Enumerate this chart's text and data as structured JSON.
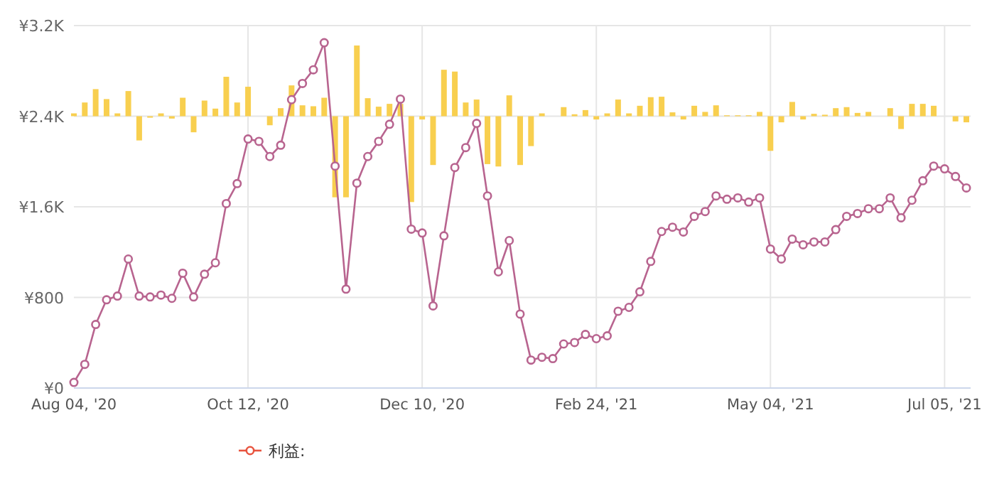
{
  "chart_data": {
    "type": "line",
    "categories": [
      "Aug 04, '20",
      null,
      null,
      null,
      null,
      null,
      null,
      null,
      null,
      null,
      null,
      null,
      null,
      null,
      null,
      null,
      "Oct 12, '20",
      null,
      null,
      null,
      null,
      null,
      null,
      null,
      null,
      null,
      null,
      null,
      null,
      null,
      null,
      null,
      "Dec 10, '20",
      null,
      null,
      null,
      null,
      null,
      null,
      null,
      null,
      null,
      null,
      null,
      null,
      null,
      null,
      null,
      "Feb 24, '21",
      null,
      null,
      null,
      null,
      null,
      null,
      null,
      null,
      null,
      null,
      null,
      null,
      null,
      null,
      null,
      "May 04, '21",
      null,
      null,
      null,
      null,
      null,
      null,
      null,
      null,
      null,
      null,
      null,
      null,
      null,
      null,
      null,
      "Jul 05, '21",
      null,
      null
    ],
    "ylim": [
      0,
      3200
    ],
    "yticks": [
      {
        "value": 0,
        "label": "¥0"
      },
      {
        "value": 800,
        "label": "¥800"
      },
      {
        "value": 1600,
        "label": "¥1.6K"
      },
      {
        "value": 2400,
        "label": "¥2.4K"
      },
      {
        "value": 3200,
        "label": "¥3.2K"
      }
    ],
    "grid": true,
    "legend": "bottom",
    "marker": "circle",
    "series": [
      {
        "type": "bar",
        "color": "#f8cf4f",
        "base": [
          2400,
          2400,
          2400,
          2400,
          2400,
          2400,
          2400,
          2400,
          2400,
          2400,
          2400,
          2400,
          2400,
          2400,
          2400,
          2400,
          2400,
          null,
          2400,
          2400,
          2400,
          2400,
          2400,
          2400,
          2400,
          2400,
          2400,
          2400,
          2400,
          2400,
          2400,
          2400,
          2400,
          2400,
          2400,
          2400,
          2400,
          2400,
          2400,
          2400,
          2400,
          2400,
          2400,
          2400,
          null,
          2400,
          2400,
          2400,
          2400,
          2400,
          2400,
          2400,
          2400,
          2400,
          2400,
          2400,
          2400,
          2400,
          2400,
          2400,
          2400,
          2400,
          2400,
          2400,
          2400,
          2400,
          2400,
          2400,
          2400,
          2400,
          2400,
          2400,
          2400,
          2400,
          null,
          2400,
          2400,
          2400,
          2400,
          2400,
          null,
          2400,
          2400
        ],
        "values": [
          25,
          121,
          239,
          151,
          25,
          222,
          -214,
          -13,
          25,
          -21,
          163,
          -142,
          138,
          67,
          348,
          121,
          260,
          null,
          -80,
          71,
          272,
          96,
          88,
          163,
          -716,
          -716,
          624,
          159,
          84,
          109,
          109,
          -758,
          -29,
          -431,
          410,
          394,
          121,
          147,
          -423,
          -444,
          184,
          -431,
          -264,
          25,
          null,
          80,
          17,
          54,
          -29,
          25,
          147,
          25,
          92,
          168,
          172,
          34,
          -29,
          92,
          38,
          96,
          8,
          8,
          8,
          38,
          -306,
          -54,
          126,
          -29,
          21,
          13,
          71,
          80,
          29,
          38,
          null,
          71,
          -113,
          109,
          109,
          92,
          null,
          -46,
          -54
        ]
      },
      {
        "name": "利益:",
        "color": "#e8543f",
        "values": [
          null,
          null,
          null,
          null,
          null,
          null,
          null,
          null,
          null,
          null,
          null,
          null,
          null,
          null,
          null,
          null,
          null,
          null,
          null,
          null,
          null,
          null,
          null,
          null,
          null,
          null,
          null,
          null,
          null,
          null,
          null,
          null,
          null,
          null,
          null,
          null,
          null,
          null,
          null,
          null,
          null,
          null,
          null,
          null,
          null,
          null,
          null,
          null,
          null,
          null,
          null,
          null,
          null,
          null,
          null,
          null,
          null,
          null,
          null,
          null,
          null,
          null,
          null,
          null,
          null,
          null,
          null,
          null,
          null,
          null,
          null,
          null,
          null,
          null,
          null,
          null,
          null,
          null,
          null,
          null,
          null,
          null,
          null
        ]
      },
      {
        "color": "#b8648f",
        "values": [
          50,
          209,
          561,
          779,
          812,
          1139,
          812,
          804,
          821,
          792,
          1014,
          804,
          1005,
          1106,
          1629,
          1805,
          2199,
          2178,
          2044,
          2144,
          2546,
          2689,
          2810,
          3049,
          1960,
          873,
          1809,
          2044,
          2178,
          2329,
          2551,
          1403,
          1369,
          725,
          1344,
          1947,
          2123,
          2337,
          1696,
          1026,
          1302,
          653,
          247,
          272,
          260,
          389,
          402,
          473,
          436,
          461,
          678,
          712,
          850,
          1118,
          1382,
          1420,
          1378,
          1516,
          1558,
          1696,
          1667,
          1679,
          1642,
          1679,
          1227,
          1139,
          1315,
          1265,
          1290,
          1290,
          1399,
          1516,
          1541,
          1583,
          1583,
          1679,
          1503,
          1658,
          1830,
          1960,
          1935,
          1868,
          1767
        ]
      }
    ]
  }
}
